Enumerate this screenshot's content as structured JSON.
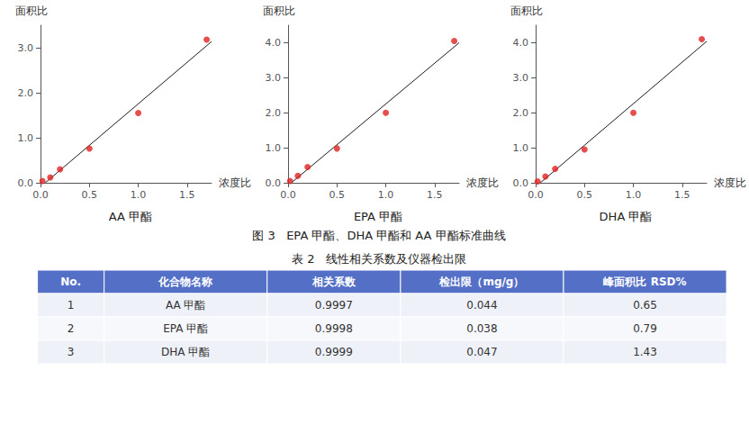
{
  "chart_data": [
    {
      "type": "scatter",
      "title": "AA 甲酯",
      "xlabel": "浓度比",
      "ylabel": "面积比",
      "series": [
        {
          "type": "scatter",
          "color": "#e02020",
          "x": [
            0.02,
            0.1,
            0.2,
            0.5,
            1.0,
            1.7
          ],
          "values": [
            0.04,
            0.12,
            0.3,
            0.76,
            1.55,
            3.18
          ]
        },
        {
          "type": "line",
          "color": "#1a1a1a",
          "x": [
            0.0488,
            1.75
          ],
          "values": [
            0,
            3.1363
          ]
        }
      ],
      "xlim": [
        0.0,
        1.75
      ],
      "ylim": [
        0.0,
        3.5
      ],
      "xticks": [
        {
          "value": 0,
          "label": "0.0"
        },
        {
          "value": 0.5,
          "label": "0.5"
        },
        {
          "value": 1,
          "label": "1.0"
        },
        {
          "value": 1.5,
          "label": "1.5"
        }
      ],
      "yticks": [
        {
          "value": 0,
          "label": "0.0"
        },
        {
          "value": 1,
          "label": "1.0"
        },
        {
          "value": 2,
          "label": "2.0"
        },
        {
          "value": 3,
          "label": "3.0"
        }
      ],
      "grid": false
    },
    {
      "type": "scatter",
      "title": "EPA 甲酯",
      "xlabel": "浓度比",
      "ylabel": "面积比",
      "series": [
        {
          "type": "scatter",
          "color": "#e02020",
          "x": [
            0.02,
            0.1,
            0.2,
            0.5,
            1.0,
            1.7
          ],
          "values": [
            0.05,
            0.2,
            0.45,
            0.98,
            2.0,
            4.05
          ]
        },
        {
          "type": "line",
          "color": "#1a1a1a",
          "x": [
            0.0336,
            1.75
          ],
          "values": [
            0,
            3.9984
          ]
        }
      ],
      "xlim": [
        0.0,
        1.75
      ],
      "ylim": [
        0.0,
        4.5
      ],
      "xticks": [
        {
          "value": 0,
          "label": "0.0"
        },
        {
          "value": 0.5,
          "label": "0.5"
        },
        {
          "value": 1,
          "label": "1.0"
        },
        {
          "value": 1.5,
          "label": "1.5"
        }
      ],
      "yticks": [
        {
          "value": 0,
          "label": "0.0"
        },
        {
          "value": 1,
          "label": "1.0"
        },
        {
          "value": 2,
          "label": "2.0"
        },
        {
          "value": 3,
          "label": "3.0"
        },
        {
          "value": 4,
          "label": "4.0"
        }
      ],
      "grid": false
    },
    {
      "type": "scatter",
      "title": "DHA 甲酯",
      "xlabel": "浓度比",
      "ylabel": "面积比",
      "series": [
        {
          "type": "scatter",
          "color": "#e02020",
          "x": [
            0.02,
            0.1,
            0.2,
            0.5,
            1.0,
            1.7
          ],
          "values": [
            0.04,
            0.18,
            0.4,
            0.95,
            2.0,
            4.1
          ]
        },
        {
          "type": "line",
          "color": "#1a1a1a",
          "x": [
            0.048,
            1.75
          ],
          "values": [
            0,
            4.0393
          ]
        }
      ],
      "xlim": [
        0.0,
        1.75
      ],
      "ylim": [
        0.0,
        4.5
      ],
      "xticks": [
        {
          "value": 0,
          "label": "0.0"
        },
        {
          "value": 0.5,
          "label": "0.5"
        },
        {
          "value": 1,
          "label": "1.0"
        },
        {
          "value": 1.5,
          "label": "1.5"
        }
      ],
      "yticks": [
        {
          "value": 0,
          "label": "0.0"
        },
        {
          "value": 1,
          "label": "1.0"
        },
        {
          "value": 2,
          "label": "2.0"
        },
        {
          "value": 3,
          "label": "3.0"
        },
        {
          "value": 4,
          "label": "4.0"
        }
      ],
      "grid": false
    },
    {
      "type": "table",
      "title": "表 2   线性相关系数及仪器检出限",
      "header": [
        "No.",
        "化合物名称",
        "相关系数",
        "检出限（mg/g）",
        "峰面积比 RSD%"
      ],
      "rows": [
        [
          "1",
          "AA 甲酯",
          "0.9997",
          "0.044",
          "0.65"
        ],
        [
          "2",
          "EPA 甲酯",
          "0.9998",
          "0.038",
          "0.79"
        ],
        [
          "3",
          "DHA 甲酯",
          "0.9999",
          "0.047",
          "1.43"
        ]
      ]
    }
  ],
  "caption": "图 3   EPA 甲酯、DHA 甲酯和 AA 甲酯标准曲线"
}
